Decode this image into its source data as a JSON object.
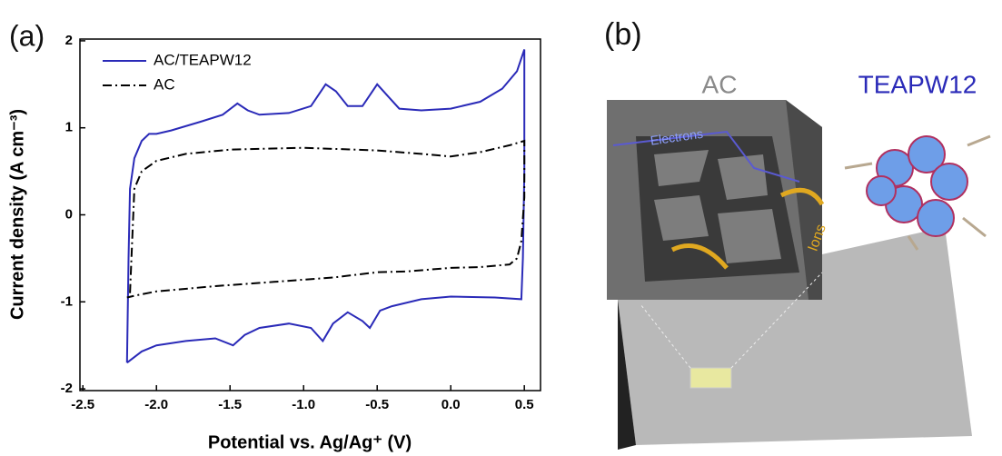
{
  "chart_data": {
    "type": "line",
    "panel_label": "(a)",
    "x_label": "Potential vs. Ag/Ag⁺ (V)",
    "y_label": "Current density (A cm⁻³)",
    "xlim": [
      -2.52,
      0.61
    ],
    "ylim": [
      -2.02,
      2.02
    ],
    "xticks": [
      -2.5,
      {
        "value": -2,
        "label": "-2.0"
      },
      -1.5,
      {
        "value": -1,
        "label": "-1.0"
      },
      -0.5,
      {
        "value": 0,
        "label": "0.0"
      },
      0.5
    ],
    "yticks": [
      2,
      1,
      0,
      -1,
      -2
    ],
    "legend": "upper left",
    "series": [
      {
        "name": "AC/TEAPW12",
        "color": "#2a2ab8",
        "linestyle": "solid",
        "x": [
          -2.2,
          -2.19,
          -2.18,
          -2.15,
          -2.1,
          -2.05,
          -2.0,
          -1.9,
          -1.7,
          -1.55,
          -1.45,
          -1.38,
          -1.3,
          -1.1,
          -0.95,
          -0.85,
          -0.78,
          -0.7,
          -0.6,
          -0.5,
          -0.42,
          -0.35,
          -0.2,
          0.0,
          0.2,
          0.35,
          0.45,
          0.5,
          0.5,
          0.49,
          0.48,
          0.3,
          0.0,
          -0.2,
          -0.4,
          -0.48,
          -0.55,
          -0.6,
          -0.7,
          -0.8,
          -0.87,
          -0.95,
          -1.1,
          -1.3,
          -1.4,
          -1.48,
          -1.6,
          -1.8,
          -2.0,
          -2.1,
          -2.2
        ],
        "values": [
          -1.7,
          -0.5,
          0.3,
          0.65,
          0.85,
          0.93,
          0.93,
          0.97,
          1.07,
          1.15,
          1.28,
          1.2,
          1.15,
          1.17,
          1.25,
          1.5,
          1.42,
          1.25,
          1.25,
          1.5,
          1.35,
          1.22,
          1.2,
          1.22,
          1.3,
          1.45,
          1.65,
          1.9,
          0.5,
          -0.5,
          -0.97,
          -0.95,
          -0.94,
          -0.97,
          -1.05,
          -1.1,
          -1.3,
          -1.22,
          -1.12,
          -1.25,
          -1.45,
          -1.3,
          -1.25,
          -1.3,
          -1.38,
          -1.5,
          -1.42,
          -1.45,
          -1.5,
          -1.57,
          -1.7
        ]
      },
      {
        "name": "AC",
        "color": "#000000",
        "linestyle": "dashdot",
        "x": [
          -2.18,
          -2.15,
          -2.1,
          -2.0,
          -1.8,
          -1.5,
          -1.0,
          -0.5,
          -0.2,
          0.0,
          0.2,
          0.4,
          0.5,
          0.5,
          0.48,
          0.45,
          0.4,
          0.2,
          0.0,
          -0.3,
          -0.5,
          -0.8,
          -1.2,
          -1.6,
          -2.0,
          -2.15,
          -2.2
        ],
        "values": [
          -0.9,
          0.3,
          0.5,
          0.62,
          0.7,
          0.75,
          0.77,
          0.74,
          0.7,
          0.67,
          0.72,
          0.8,
          0.85,
          0.2,
          -0.3,
          -0.5,
          -0.57,
          -0.6,
          -0.61,
          -0.65,
          -0.66,
          -0.72,
          -0.77,
          -0.82,
          -0.88,
          -0.93,
          -0.95
        ]
      }
    ]
  },
  "illustration": {
    "panel_label": "(b)",
    "material": "AC",
    "molecule": "TEAPW12",
    "electrons": "Electrons",
    "ions": "Ions"
  }
}
